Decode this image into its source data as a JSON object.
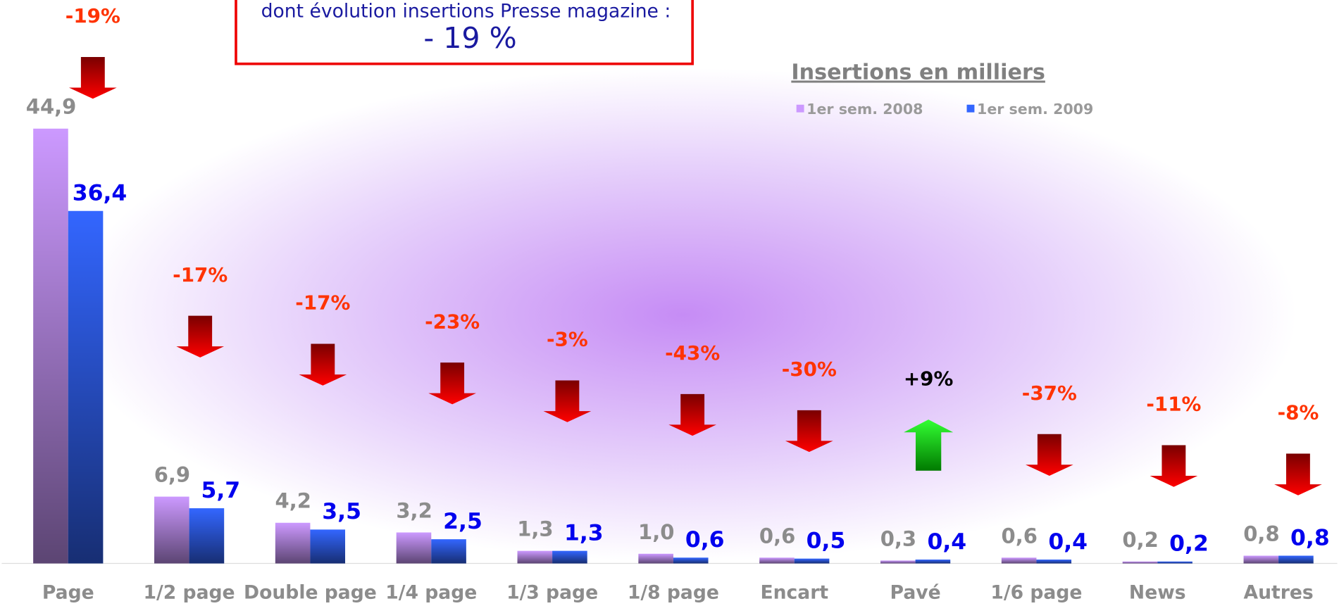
{
  "chart_data": {
    "type": "bar",
    "box_text": "dont évolution insertions Presse magazine :",
    "box_value": "- 19 %",
    "subtitle": "Insertions en milliers",
    "categories": [
      "Page",
      "1/2 page",
      "Double page",
      "1/4 page",
      "1/3 page",
      "1/8 page",
      "Encart",
      "Pavé",
      "1/6 page",
      "News",
      "Autres"
    ],
    "series": [
      {
        "name": "1er sem. 2008",
        "color": "#cc99ff",
        "values": [
          44.9,
          6.9,
          4.2,
          3.2,
          1.3,
          1.0,
          0.6,
          0.3,
          0.6,
          0.2,
          0.8
        ],
        "value_labels": [
          "44,9",
          "6,9",
          "4,2",
          "3,2",
          "1,3",
          "1,0",
          "0,6",
          "0,3",
          "0,6",
          "0,2",
          "0,8"
        ]
      },
      {
        "name": "1er sem. 2009",
        "color": "#3366ff",
        "values": [
          36.4,
          5.7,
          3.5,
          2.5,
          1.3,
          0.6,
          0.5,
          0.4,
          0.4,
          0.2,
          0.8
        ],
        "value_labels": [
          "36,4",
          "5,7",
          "3,5",
          "2,5",
          "1,3",
          "0,6",
          "0,5",
          "0,4",
          "0,4",
          "0,2",
          "0,8"
        ]
      }
    ],
    "changes": {
      "values": [
        -19,
        -17,
        -17,
        -23,
        -3,
        -43,
        -30,
        9,
        -37,
        -11,
        -8
      ],
      "value_labels": [
        "-19%",
        "-17%",
        "-17%",
        "-23%",
        "-3%",
        "-43%",
        "-30%",
        "+9%",
        "-37%",
        "-11%",
        "-8%"
      ]
    },
    "ylim": [
      0,
      45
    ]
  }
}
